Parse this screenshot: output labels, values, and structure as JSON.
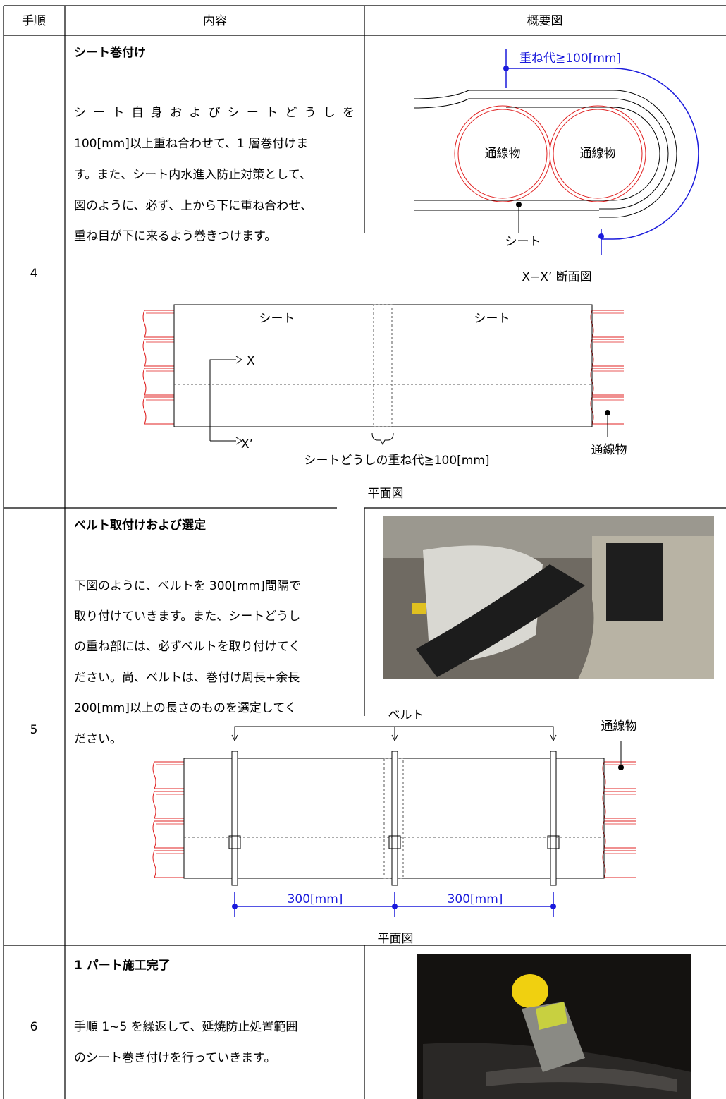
{
  "table": {
    "headers": [
      "手順",
      "内容",
      "概要図"
    ],
    "rows": [
      {
        "step": "4",
        "heading": "シート巻付け",
        "body": [
          "シート自身およびシートどうしを",
          "100[mm]以上重ね合わせて、1 層巻付けま",
          "す。また、シート内水進入防止対策として、",
          "図のように、必ず、上から下に重ね合わせ、",
          "重ね目が下に来るよう巻きつけます。"
        ],
        "diagram": {
          "overlap": "重ね代≧100[mm]",
          "cable_left": "通線物",
          "cable_right": "通線物",
          "sheet": "シート",
          "section_caption": "X−X’ 断面図",
          "plan_sheet_left": "シート",
          "plan_sheet_right": "シート",
          "x_top": "X",
          "x_bottom": "X’",
          "plan_overlap": "シートどうしの重ね代≧100[mm]",
          "plan_cable": "通線物",
          "plan_caption": "平面図"
        }
      },
      {
        "step": "5",
        "heading": "ベルト取付けおよび選定",
        "body": [
          "下図のように、ベルトを 300[mm]間隔で",
          "取り付けていきます。また、シートどうし",
          "の重ね部には、必ずベルトを取り付けてく",
          "ださい。尚、ベルトは、巻付け周長+余長",
          "200[mm]以上の長さのものを選定してく",
          "ださい。"
        ],
        "diagram": {
          "belt": "ベルト",
          "cable": "通線物",
          "spacing_left": "300[mm]",
          "spacing_right": "300[mm]",
          "plan_caption": "平面図"
        }
      },
      {
        "step": "6",
        "heading": "1 パート施工完了",
        "body": [
          "手順 1~5 を繰返して、延焼防止処置範囲",
          "のシート巻き付けを行っていきます。"
        ]
      }
    ]
  }
}
